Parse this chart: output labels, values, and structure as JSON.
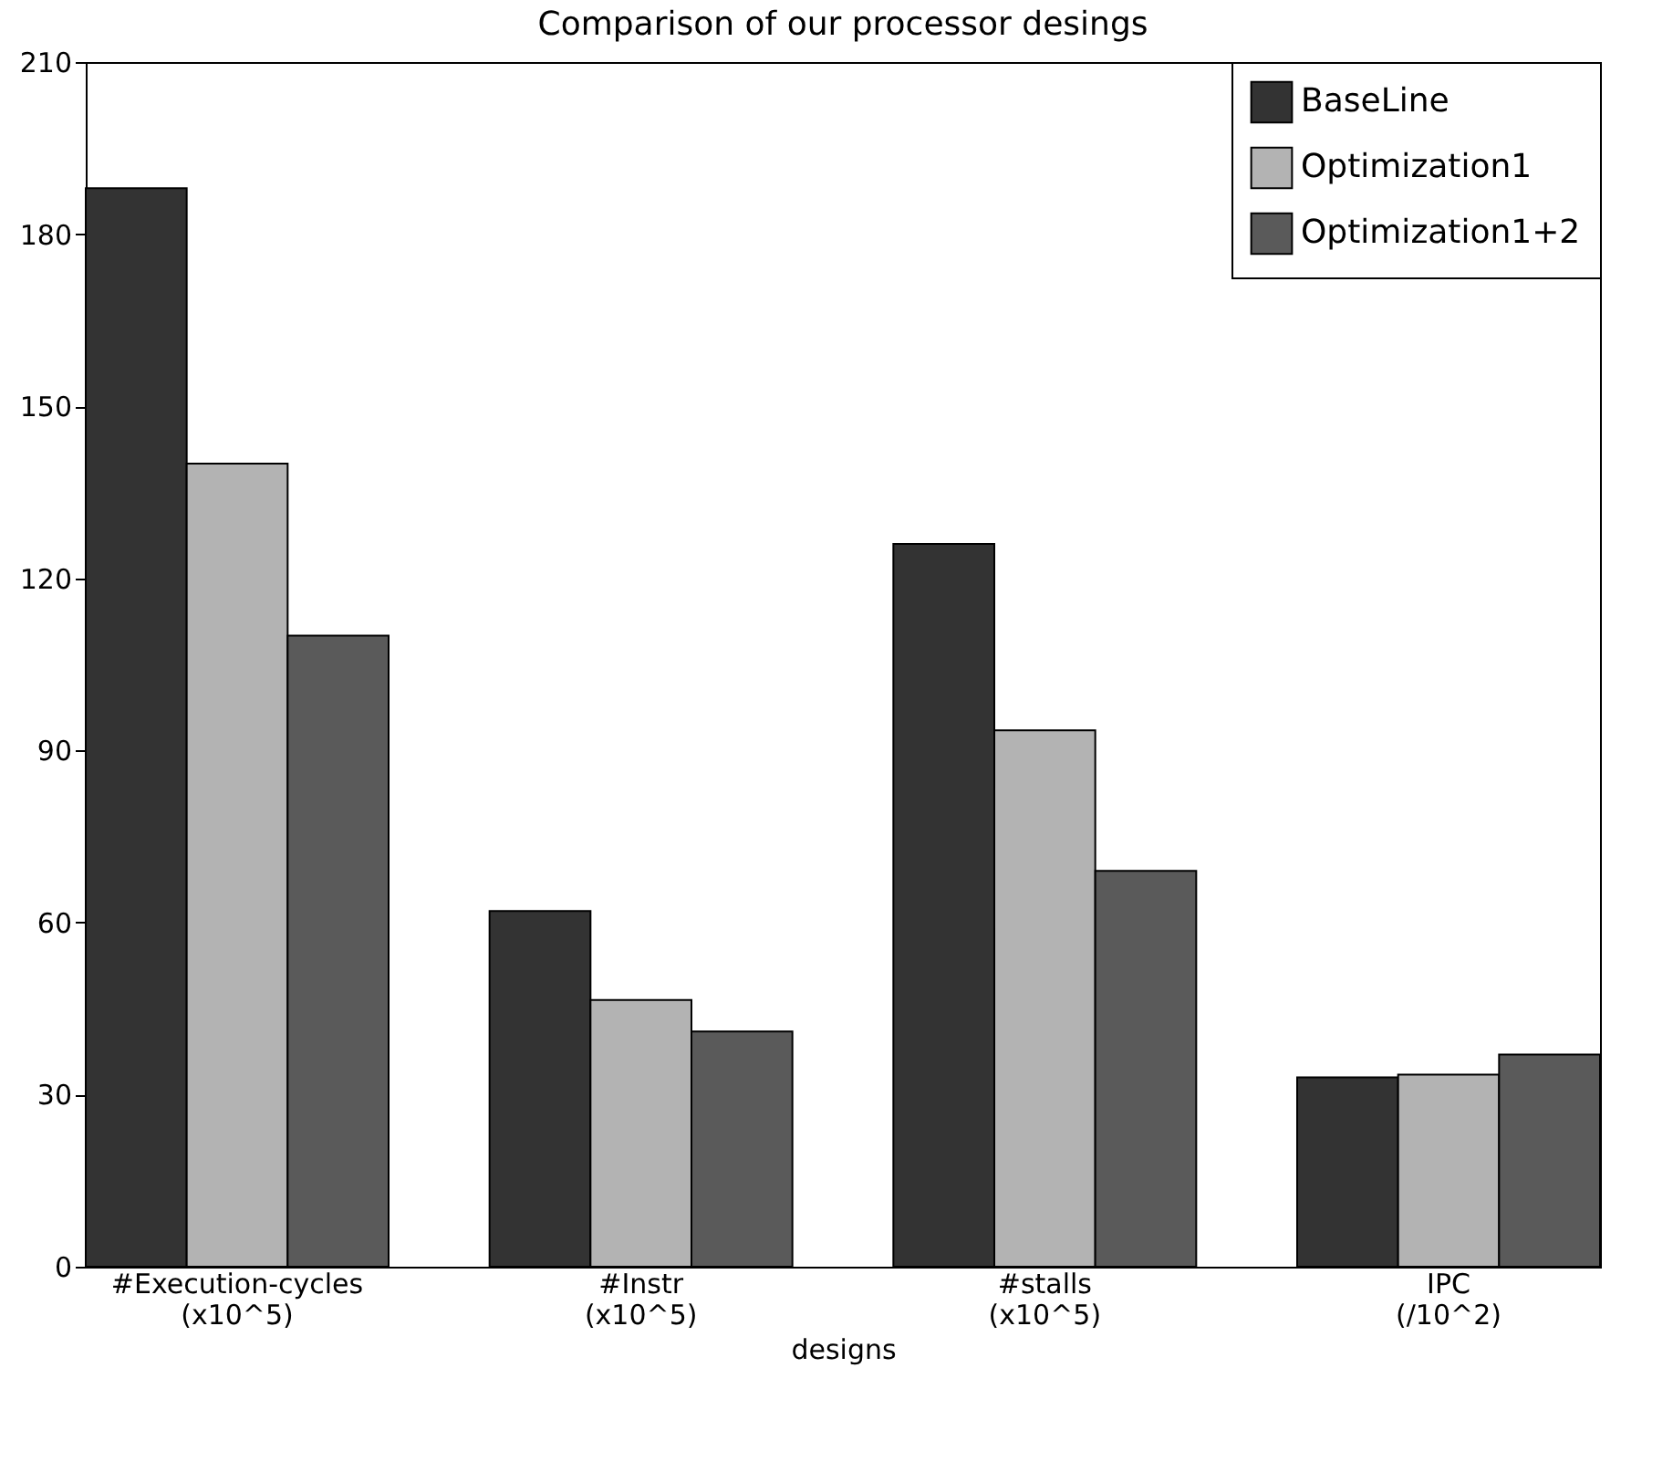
{
  "chart_data": {
    "type": "bar",
    "title": "Comparison of our processor desings",
    "xlabel": "designs",
    "categories": [
      "#Execution-cycles\n(x10^5)",
      "#Instr\n(x10^5)",
      "#stalls\n(x10^5)",
      "IPC\n(/10^2)"
    ],
    "series": [
      {
        "name": "BaseLine",
        "color": "#333333",
        "values": [
          188,
          62,
          126,
          33
        ]
      },
      {
        "name": "Optimization1",
        "color": "#b3b3b3",
        "values": [
          140,
          46.5,
          93.5,
          33.5
        ]
      },
      {
        "name": "Optimization1+2",
        "color": "#5a5a5a",
        "values": [
          110,
          41,
          69,
          37
        ]
      }
    ],
    "ylim": [
      0,
      210
    ],
    "yticks": [
      0,
      30,
      60,
      90,
      120,
      150,
      180,
      210
    ],
    "grid": false,
    "legend": "top right"
  }
}
